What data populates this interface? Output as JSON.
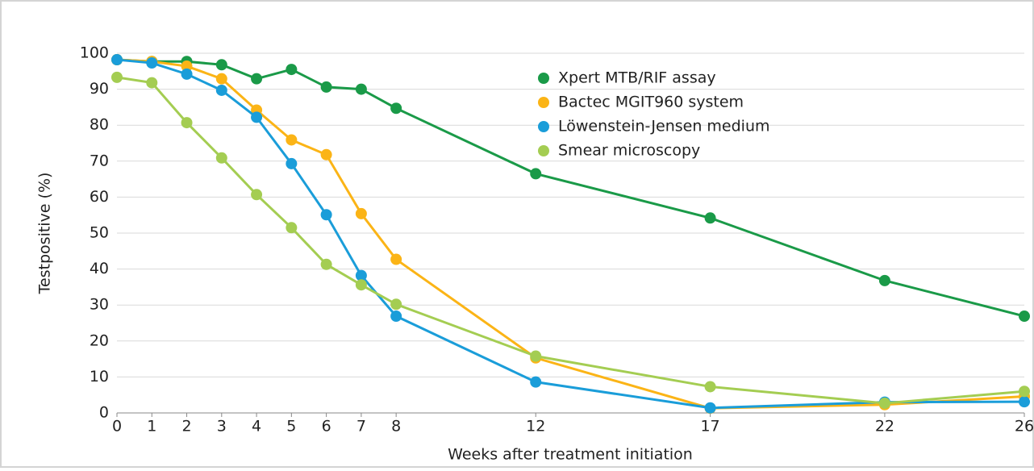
{
  "chart_data": {
    "type": "line",
    "x": [
      0,
      1,
      2,
      3,
      4,
      5,
      6,
      7,
      8,
      12,
      17,
      22,
      26
    ],
    "xlabel": "Weeks after treatment initiation",
    "ylabel": "Testpositive (%)",
    "xlim": [
      0,
      26
    ],
    "xticks": [
      0,
      1,
      2,
      3,
      4,
      5,
      6,
      7,
      8,
      12,
      17,
      22,
      26
    ],
    "ylim": [
      0,
      100
    ],
    "yticks": [
      0,
      10,
      20,
      30,
      40,
      50,
      60,
      70,
      80,
      90,
      100
    ],
    "grid": true,
    "legend": "upper center",
    "series": [
      {
        "name": "Xpert MTB/RIF assay",
        "color": "#1a9a48",
        "values": [
          98.2,
          97.7,
          97.7,
          96.8,
          92.9,
          95.5,
          90.6,
          90.0,
          84.7,
          66.5,
          54.2,
          36.8,
          26.9
        ]
      },
      {
        "name": "Bactec MGIT960 system",
        "color": "#fbb416",
        "values": [
          98.2,
          97.7,
          96.4,
          92.9,
          84.2,
          75.9,
          71.8,
          55.4,
          42.7,
          15.3,
          1.3,
          2.3,
          4.6
        ]
      },
      {
        "name": "Löwenstein-Jensen medium",
        "color": "#1a9dd9",
        "values": [
          98.2,
          97.3,
          94.2,
          89.7,
          82.2,
          69.3,
          55.1,
          38.2,
          26.9,
          8.6,
          1.4,
          3.0,
          3.1
        ]
      },
      {
        "name": "Smear microscopy",
        "color": "#a4cd52",
        "values": [
          93.3,
          91.8,
          80.7,
          70.9,
          60.7,
          51.5,
          41.3,
          35.6,
          30.2,
          15.8,
          7.3,
          2.7,
          6.0
        ]
      }
    ]
  }
}
